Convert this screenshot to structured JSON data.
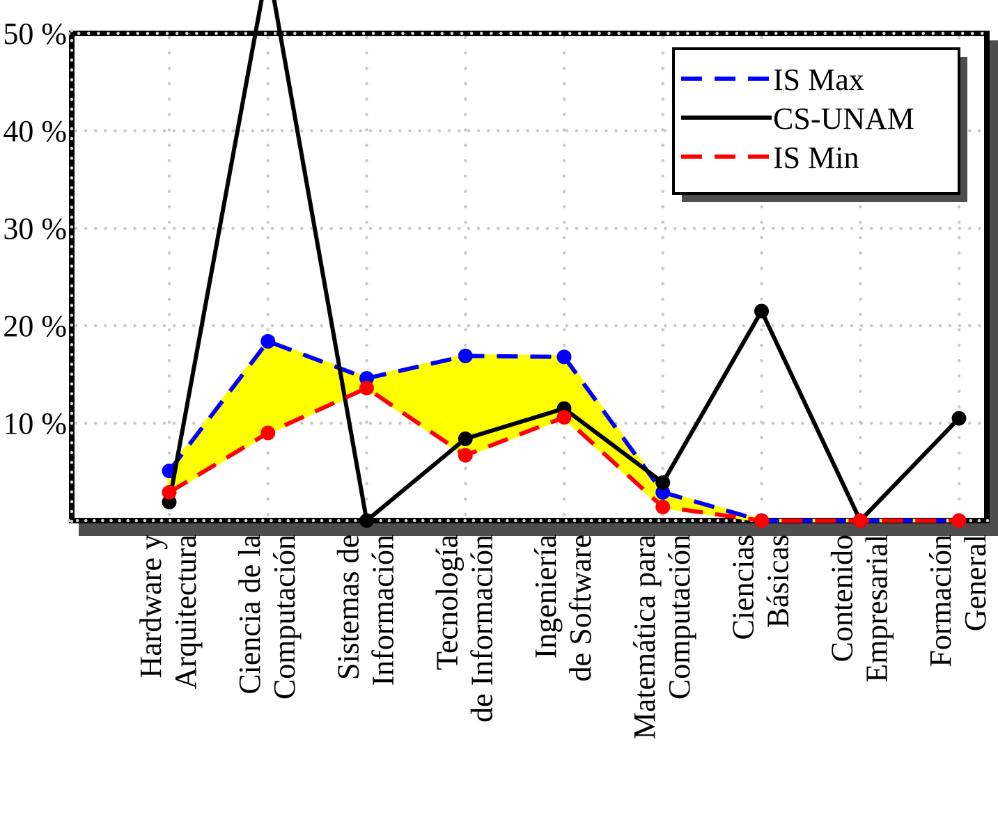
{
  "chart_data": {
    "type": "line",
    "title": "",
    "xlabel": "",
    "ylabel": "",
    "ylim": [
      0,
      50
    ],
    "y_tick_values": [
      10,
      20,
      30,
      40,
      50
    ],
    "y_tick_labels": [
      "10 %",
      "20 %",
      "30 %",
      "40 %",
      "50 %"
    ],
    "grid": "dotted",
    "grid_color": "#c9c9c9",
    "categories": [
      [
        "Hardware y",
        "Arquitectura"
      ],
      [
        "Ciencia de la",
        "Computación"
      ],
      [
        "Sistemas de",
        "Información"
      ],
      [
        "Tecnología",
        "de Información"
      ],
      [
        "Ingeniería",
        "de Software"
      ],
      [
        "Matemática para",
        "Computación"
      ],
      [
        "Ciencias",
        "Básicas"
      ],
      [
        "Contenido",
        "Empresarial"
      ],
      [
        "Formación",
        "General"
      ]
    ],
    "series": [
      {
        "name": "IS Max",
        "color": "#0000ff",
        "dashed": true,
        "values": [
          5.1,
          18.4,
          14.6,
          16.9,
          16.8,
          2.9,
          0,
          0,
          0
        ]
      },
      {
        "name": "CS-UNAM",
        "color": "#000000",
        "dashed": false,
        "values": [
          1.9,
          57.0,
          0,
          8.4,
          11.5,
          3.9,
          21.5,
          0,
          10.5
        ]
      },
      {
        "name": "IS Min",
        "color": "#ff0000",
        "dashed": true,
        "values": [
          2.9,
          9.0,
          13.6,
          6.7,
          10.6,
          1.4,
          0,
          0,
          0
        ]
      }
    ],
    "band": {
      "between": [
        "IS Max",
        "IS Min"
      ],
      "fill_color": "#ffff00"
    },
    "legend": {
      "position": "top-right",
      "entries": [
        "IS Max",
        "CS-UNAM",
        "IS Min"
      ]
    },
    "annotations": "CS-UNAM peak at 'Ciencia de la Computación' rises above the 50 % axis maximum and is clipped by the image edge",
    "shadow_color": "#4d4d4d"
  }
}
